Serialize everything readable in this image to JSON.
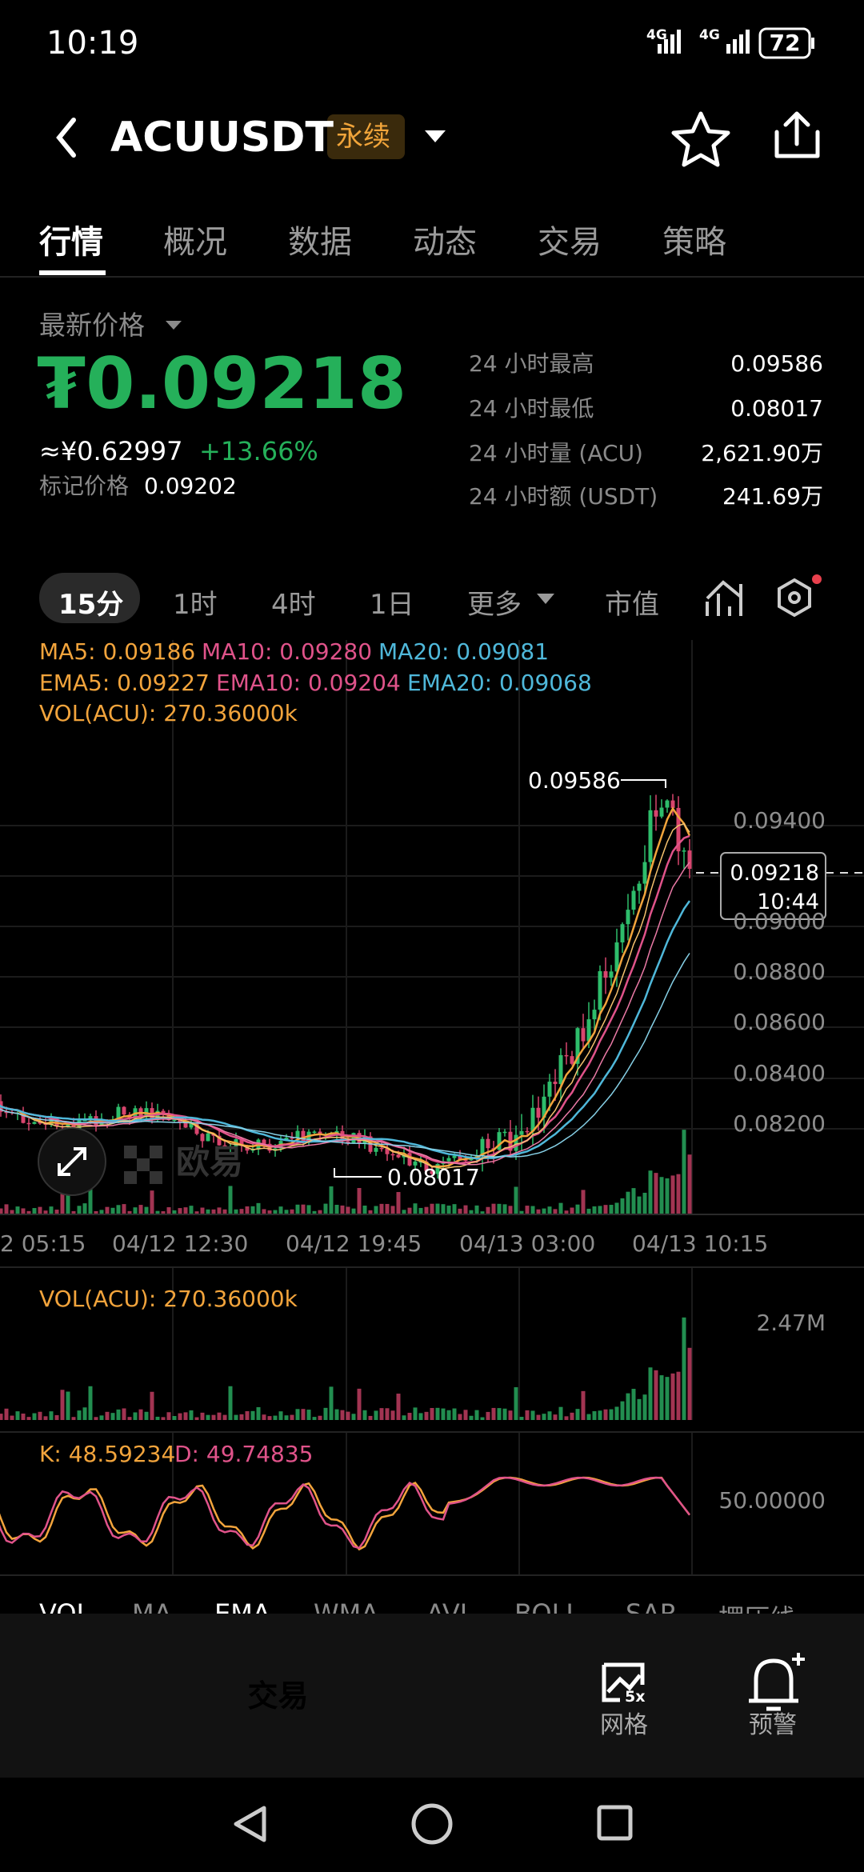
{
  "status_bar": {
    "time": "10:19",
    "network": [
      "4G",
      "4G"
    ],
    "battery": "72"
  },
  "header": {
    "symbol": "ACUUSDT",
    "badge": "永续"
  },
  "tabs": [
    "行情",
    "概况",
    "数据",
    "动态",
    "交易",
    "策略"
  ],
  "price": {
    "label": "最新价格",
    "value": "₮0.09218",
    "cny": "≈¥0.62997",
    "change": "+13.66%",
    "mark_label": "标记价格",
    "mark_value": "0.09202"
  },
  "stats": [
    {
      "label": "24 小时最高",
      "value": "0.09586"
    },
    {
      "label": "24 小时最低",
      "value": "0.08017"
    },
    {
      "label": "24 小时量 (ACU)",
      "value": "2,621.90万"
    },
    {
      "label": "24 小时额 (USDT)",
      "value": "241.69万"
    }
  ],
  "intervals": [
    "15分",
    "1时",
    "4时",
    "1日",
    "更多",
    "市值"
  ],
  "indicators": {
    "ma": [
      "MA5: 0.09186",
      "MA10: 0.09280",
      "MA20: 0.09081"
    ],
    "ema": [
      "EMA5: 0.09227",
      "EMA10: 0.09204",
      "EMA20: 0.09068"
    ],
    "vol": "VOL(ACU): 270.36000k"
  },
  "chart": {
    "y_labels": [
      "0.09400",
      "0.09000",
      "0.08800",
      "0.08600",
      "0.08400",
      "0.08200"
    ],
    "high_label": "0.09586",
    "low_label": "0.08017",
    "current_price": "0.09218",
    "countdown": "10:44",
    "watermark": "欧易",
    "x_labels": [
      "2 05:15",
      "04/12 12:30",
      "04/12 19:45",
      "04/13 03:00",
      "04/13 10:15"
    ]
  },
  "volume_panel": {
    "label": "VOL(ACU): 270.36000k",
    "max": "2.47M"
  },
  "kdj_panel": {
    "k": "K: 48.59234",
    "d": "D: 49.74835",
    "level": "50.00000"
  },
  "indicator_tabs": [
    "VOL",
    "MA",
    "EMA",
    "WMA",
    "AVL",
    "BOLL",
    "SAR",
    "摆压线"
  ],
  "bottom_bar": {
    "trade": "交易",
    "grid_badge": "5x",
    "grid": "网格",
    "alert": "预警"
  }
}
